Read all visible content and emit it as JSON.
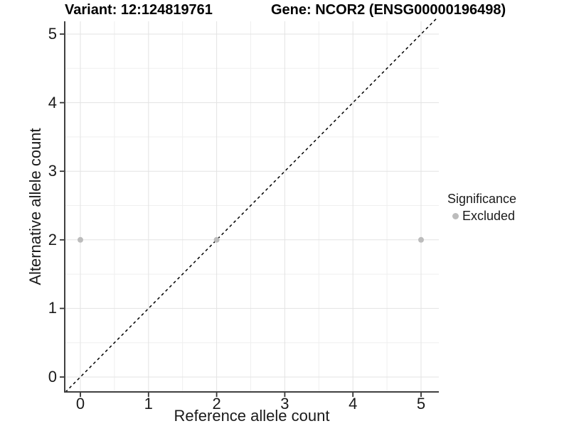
{
  "titles": {
    "variant": "Variant: 12:124819761",
    "gene": "Gene: NCOR2 (ENSG00000196498)"
  },
  "axes": {
    "x": {
      "label": "Reference allele count",
      "ticks": [
        0,
        1,
        2,
        3,
        4,
        5
      ],
      "minor_ticks": [
        0.5,
        1.5,
        2.5,
        3.5,
        4.5
      ]
    },
    "y": {
      "label": "Alternative allele count",
      "ticks": [
        0,
        1,
        2,
        3,
        4,
        5
      ],
      "minor_ticks": [
        0.5,
        1.5,
        2.5,
        3.5,
        4.5
      ]
    }
  },
  "legend": {
    "title": "Significance",
    "items": [
      {
        "label": "Excluded",
        "color": "#bcbcbc"
      }
    ]
  },
  "style": {
    "point_color": "#bcbcbc",
    "grid_major_color": "#e3e3e3",
    "grid_minor_color": "#efefef",
    "axis_line_color": "#404040",
    "tick_color": "#333333",
    "dashed_line_color": "#000000",
    "background": "#ffffff"
  },
  "chart_data": {
    "type": "scatter",
    "title": "Variant: 12:124819761 | Gene: NCOR2 (ENSG00000196498)",
    "xlabel": "Reference allele count",
    "ylabel": "Alternative allele count",
    "xlim": [
      -0.23,
      5.26
    ],
    "ylim": [
      -0.22,
      5.19
    ],
    "grid": true,
    "legend_position": "right",
    "series": [
      {
        "name": "Excluded",
        "color": "#bcbcbc",
        "points": [
          {
            "x": 0,
            "y": 2
          },
          {
            "x": 2,
            "y": 2
          },
          {
            "x": 5,
            "y": 2
          }
        ]
      }
    ],
    "reference_line": {
      "kind": "identity",
      "style": "dashed",
      "color": "#000000",
      "from": {
        "x": -0.22,
        "y": -0.22
      },
      "to": {
        "x": 5.24,
        "y": 5.24
      }
    }
  }
}
